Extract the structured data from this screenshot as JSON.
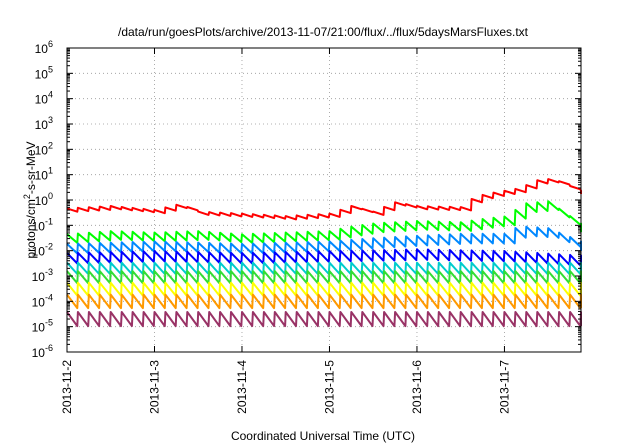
{
  "chart_data": {
    "type": "line",
    "title": "/data/run/goesPlots/archive/2013-11-07/21:00/flux/../flux/5daysMarsFluxes.txt",
    "xlabel": "Coordinated Universal Time (UTC)",
    "ylabel": {
      "prefix": "protons/cm",
      "superscript": "2",
      "suffix": "-s-sr-MeV"
    },
    "y_scale": "log",
    "ylim": [
      1e-06,
      1000000.0
    ],
    "y_ticks": [
      {
        "value": 1e-06,
        "base": "10",
        "exp": "-6"
      },
      {
        "value": 1e-05,
        "base": "10",
        "exp": "-5"
      },
      {
        "value": 0.0001,
        "base": "10",
        "exp": "-4"
      },
      {
        "value": 0.001,
        "base": "10",
        "exp": "-3"
      },
      {
        "value": 0.01,
        "base": "10",
        "exp": "-2"
      },
      {
        "value": 0.1,
        "base": "10",
        "exp": "-1"
      },
      {
        "value": 1,
        "base": "10",
        "exp": "0"
      },
      {
        "value": 10,
        "base": "10",
        "exp": "1"
      },
      {
        "value": 100,
        "base": "10",
        "exp": "2"
      },
      {
        "value": 1000,
        "base": "10",
        "exp": "3"
      },
      {
        "value": 10000,
        "base": "10",
        "exp": "4"
      },
      {
        "value": 100000,
        "base": "10",
        "exp": "5"
      },
      {
        "value": 1000000,
        "base": "10",
        "exp": "6"
      }
    ],
    "xlim": [
      "2013-11-02",
      "2013-11-07T21:00"
    ],
    "x_ticks": [
      "2013-11-2",
      "2013-11-3",
      "2013-11-4",
      "2013-11-5",
      "2013-11-6",
      "2013-11-7"
    ],
    "x_tick_dates": [
      "2013-11-02",
      "2013-11-03",
      "2013-11-04",
      "2013-11-05",
      "2013-11-06",
      "2013-11-07"
    ],
    "grid": true,
    "grid_style": "dotted",
    "series": [
      {
        "color": "#ff0000",
        "x": [
          "2013-11-02T00:00",
          "2013-11-02T12:00",
          "2013-11-03T00:00",
          "2013-11-03T07:00",
          "2013-11-03T12:00",
          "2013-11-04T00:00",
          "2013-11-04T12:00",
          "2013-11-05T00:00",
          "2013-11-05T06:00",
          "2013-11-05T12:00",
          "2013-11-05T18:00",
          "2013-11-06T00:00",
          "2013-11-06T12:00",
          "2013-11-06T16:00",
          "2013-11-06T22:00",
          "2013-11-07T04:00",
          "2013-11-07T10:00",
          "2013-11-07T14:00",
          "2013-11-07T21:00"
        ],
        "y": [
          0.4,
          0.5,
          0.35,
          0.6,
          0.3,
          0.25,
          0.2,
          0.25,
          0.5,
          0.3,
          0.7,
          0.5,
          0.45,
          1.2,
          1.8,
          2.5,
          6.0,
          5.5,
          2.0
        ]
      },
      {
        "color": "#00ff00",
        "x": [
          "2013-11-02T00:00",
          "2013-11-02T12:00",
          "2013-11-03T00:00",
          "2013-11-03T12:00",
          "2013-11-04T00:00",
          "2013-11-04T12:00",
          "2013-11-05T00:00",
          "2013-11-05T06:00",
          "2013-11-05T12:00",
          "2013-11-06T00:00",
          "2013-11-06T12:00",
          "2013-11-06T18:00",
          "2013-11-07T00:00",
          "2013-11-07T06:00",
          "2013-11-07T12:00",
          "2013-11-07T21:00"
        ],
        "y": [
          0.03,
          0.04,
          0.035,
          0.04,
          0.03,
          0.035,
          0.04,
          0.06,
          0.08,
          0.1,
          0.09,
          0.12,
          0.15,
          0.5,
          0.6,
          0.08
        ]
      },
      {
        "color": "#0088ff",
        "x": [
          "2013-11-02T00:00",
          "2013-11-03T00:00",
          "2013-11-04T00:00",
          "2013-11-05T00:00",
          "2013-11-05T12:00",
          "2013-11-06T00:00",
          "2013-11-06T12:00",
          "2013-11-07T00:00",
          "2013-11-07T04:00",
          "2013-11-07T12:00",
          "2013-11-07T21:00"
        ],
        "y": [
          0.012,
          0.015,
          0.012,
          0.015,
          0.02,
          0.025,
          0.03,
          0.03,
          0.06,
          0.05,
          0.015
        ]
      },
      {
        "color": "#0000ff",
        "x": [
          "2013-11-02T00:00",
          "2013-11-03T00:00",
          "2013-11-04T00:00",
          "2013-11-05T00:00",
          "2013-11-06T00:00",
          "2013-11-07T00:00",
          "2013-11-07T21:00"
        ],
        "y": [
          0.005,
          0.006,
          0.005,
          0.006,
          0.007,
          0.006,
          0.004
        ]
      },
      {
        "color": "#00cccc",
        "x": [
          "2013-11-02T00:00",
          "2013-11-07T21:00"
        ],
        "y": [
          0.002,
          0.002
        ]
      },
      {
        "color": "#33dd33",
        "x": [
          "2013-11-02T00:00",
          "2013-11-07T21:00"
        ],
        "y": [
          0.0009,
          0.0009
        ]
      },
      {
        "color": "#ffff00",
        "x": [
          "2013-11-02T00:00",
          "2013-11-07T21:00"
        ],
        "y": [
          0.0003,
          0.0003
        ]
      },
      {
        "color": "#ff9900",
        "x": [
          "2013-11-02T00:00",
          "2013-11-07T21:00"
        ],
        "y": [
          0.0001,
          0.0001
        ]
      },
      {
        "color": "#993366",
        "x": [
          "2013-11-02T00:00",
          "2013-11-07T21:00"
        ],
        "y": [
          2e-05,
          2e-05
        ]
      }
    ]
  }
}
